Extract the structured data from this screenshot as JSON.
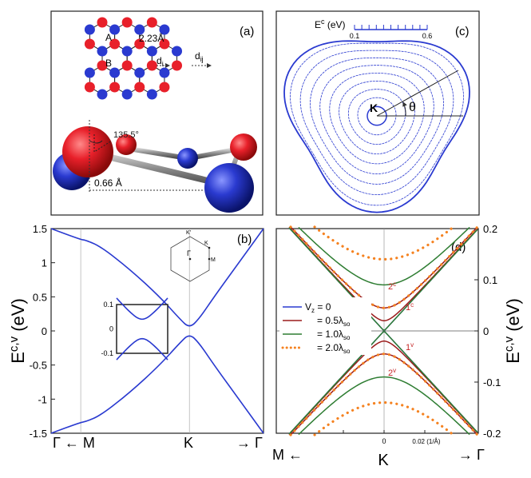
{
  "panels": {
    "a": {
      "label": "(a)",
      "sublattice_A": "A",
      "sublattice_B": "B",
      "bond_length": "2.23Å",
      "vector_di": "d",
      "vector_di_sub": "i",
      "vector_dij": "d",
      "vector_dij_sub": "ij",
      "angle": "135.5°",
      "buckling": "0.66 Å",
      "colors": {
        "A": "#e8202a",
        "B": "#2a3ad0"
      }
    },
    "c": {
      "label": "(c)",
      "scale_title": "E",
      "scale_title_sup": "c",
      "scale_title_unit": " (eV)",
      "scale_min": "0.1",
      "scale_max": "0.6",
      "point": "K",
      "angle": "θ",
      "contour_levels": [
        0.1,
        0.2,
        0.3,
        0.4,
        0.5,
        0.6
      ]
    },
    "b": {
      "label": "(b)",
      "inset_bz": {
        "gamma": "Γ",
        "k": "K",
        "kprime": "K'",
        "m": "M"
      }
    },
    "d": {
      "label": "(d)",
      "band_labels": [
        "2",
        "1",
        "1",
        "2"
      ],
      "band_label_sups": [
        "c",
        "c",
        "v",
        "v"
      ],
      "legend_prefix": "V",
      "legend_prefix_sub": "z",
      "legend_first_value": " = 0",
      "legend_eq": "= ",
      "legend_multipliers": [
        "0.5",
        "1.0",
        "2.0"
      ],
      "legend_lambda": "λ",
      "legend_lambda_sub": "so"
    }
  },
  "chart_data": [
    {
      "type": "line",
      "panel": "b",
      "ylabel": "E",
      "ylabel_sup": "c,v",
      "ylabel_unit": " (eV)",
      "ylim": [
        -1.5,
        1.5
      ],
      "y_ticks": [
        1.5,
        1,
        0.5,
        0,
        -0.5,
        -1,
        -1.5
      ],
      "y_tick_labels": [
        "1.5",
        "1",
        "0.5",
        "0",
        "-0.5",
        "-1",
        "-1.5"
      ],
      "x_path": [
        "Γ ← M",
        "K",
        "→ Γ"
      ],
      "series": [
        {
          "band": "conduction",
          "color": "#2a3ad0",
          "points": [
            [
              -0.3,
              1.5
            ],
            [
              0.0,
              1.34
            ],
            [
              0.05,
              1.33
            ],
            [
              0.2,
              1.24
            ],
            [
              0.5,
              0.9
            ],
            [
              0.8,
              0.5
            ],
            [
              1.0,
              0.18
            ],
            [
              1.1,
              0.04
            ],
            [
              1.2,
              0.18
            ],
            [
              1.35,
              0.5
            ],
            [
              1.6,
              1.0
            ],
            [
              1.8,
              1.4
            ],
            [
              1.85,
              1.5
            ]
          ]
        },
        {
          "band": "valence",
          "color": "#2a3ad0",
          "points": [
            [
              -0.3,
              -1.5
            ],
            [
              0.0,
              -1.34
            ],
            [
              0.05,
              -1.33
            ],
            [
              0.2,
              -1.24
            ],
            [
              0.5,
              -0.9
            ],
            [
              0.8,
              -0.5
            ],
            [
              1.0,
              -0.18
            ],
            [
              1.1,
              -0.04
            ],
            [
              1.2,
              -0.18
            ],
            [
              1.35,
              -0.5
            ],
            [
              1.6,
              -1.0
            ],
            [
              1.8,
              -1.4
            ],
            [
              1.85,
              -1.5
            ]
          ]
        }
      ],
      "inset": {
        "ylim": [
          -0.1,
          0.1
        ],
        "y_ticks": [
          0.1,
          0,
          -0.1
        ],
        "y_tick_labels": [
          "0.1",
          "0",
          "-0.1"
        ],
        "gap": 0.04
      }
    },
    {
      "type": "line",
      "panel": "d",
      "ylabel": "E",
      "ylabel_sup": "c,v",
      "ylabel_unit": " (eV)",
      "ylim": [
        -0.2,
        0.2
      ],
      "y_ticks": [
        0.2,
        0.1,
        0,
        -0.1,
        -0.2
      ],
      "y_tick_labels": [
        "0.2",
        "0.1",
        "0",
        "-0.1",
        "-0.2"
      ],
      "x_tick_zero": "0",
      "x_tick_label": "0.02 (1/Å)",
      "x_path_left": "M ←",
      "x_path_center": "K",
      "x_path_right": "→ Γ",
      "series": [
        {
          "name": "= 0",
          "color": "#2a3ad0",
          "style": "solid",
          "gaps": [
            0.0
          ]
        },
        {
          "name": "= 0.5λso",
          "color": "#9b1b1b",
          "style": "solid",
          "gaps": [
            0.045,
            0.02
          ]
        },
        {
          "name": "= 1.0λso",
          "color": "#2e7d32",
          "style": "solid",
          "gaps": [
            0.09,
            0.0
          ]
        },
        {
          "name": "= 2.0λso",
          "color": "#f58220",
          "style": "dotted",
          "gaps": [
            0.14,
            0.045
          ]
        }
      ]
    }
  ]
}
